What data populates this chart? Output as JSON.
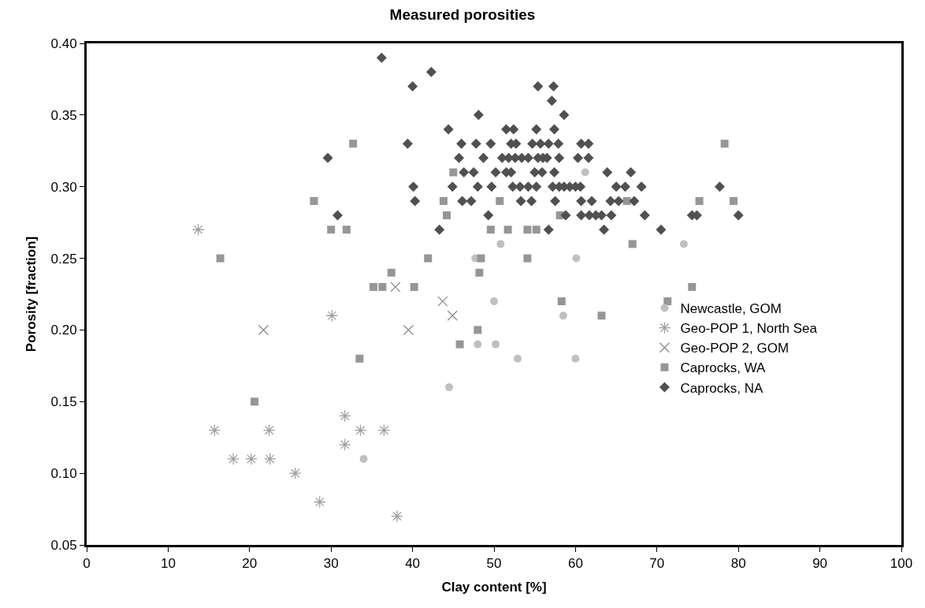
{
  "chart_data": {
    "type": "scatter",
    "title": "Measured porosities",
    "xlabel": "Clay content [%]",
    "ylabel": "Porosity [fraction]",
    "xlim": [
      0,
      100
    ],
    "xticks": [
      0,
      10,
      20,
      30,
      40,
      50,
      60,
      70,
      80,
      90,
      100
    ],
    "ylim": [
      0.05,
      0.4
    ],
    "yticks": [
      {
        "value": 0.05,
        "label": "0.05"
      },
      {
        "value": 0.1,
        "label": "0.10"
      },
      {
        "value": 0.15,
        "label": "0.15"
      },
      {
        "value": 0.2,
        "label": "0.20"
      },
      {
        "value": 0.25,
        "label": "0.25"
      },
      {
        "value": 0.3,
        "label": "0.30"
      },
      {
        "value": 0.35,
        "label": "0.35"
      },
      {
        "value": 0.4,
        "label": "0.40"
      }
    ],
    "legend": "right",
    "series": [
      {
        "name": "Newcastle, GOM",
        "color": "#c0c0c0",
        "marker": "circle",
        "x": [
          61.2,
          73.3,
          50.8,
          47.7,
          60.1,
          50.0,
          58.5,
          48.0,
          50.2,
          52.9,
          60.0,
          44.5,
          34.0
        ],
        "values": [
          0.31,
          0.26,
          0.26,
          0.25,
          0.25,
          0.22,
          0.21,
          0.19,
          0.19,
          0.18,
          0.18,
          0.16,
          0.11
        ]
      },
      {
        "name": "Geo-POP 1, North Sea",
        "color": "#a0a0a0",
        "marker": "cross",
        "x": [
          13.7,
          30.1,
          15.7,
          22.4,
          31.7,
          31.7,
          33.6,
          36.5,
          18.0,
          20.2,
          22.5,
          25.6,
          28.6,
          38.1
        ],
        "values": [
          0.27,
          0.21,
          0.13,
          0.13,
          0.14,
          0.12,
          0.13,
          0.13,
          0.11,
          0.11,
          0.11,
          0.1,
          0.08,
          0.07
        ]
      },
      {
        "name": "Geo-POP 2, GOM",
        "color": "#8c8c8c",
        "marker": "cross",
        "x": [
          21.7,
          37.9,
          43.7,
          44.9,
          39.5
        ],
        "values": [
          0.2,
          0.23,
          0.22,
          0.21,
          0.2
        ]
      },
      {
        "name": "Caprocks, WA",
        "color": "#969696",
        "marker": "square",
        "x": [
          32.7,
          78.3,
          45.0,
          27.9,
          43.8,
          50.7,
          66.3,
          75.2,
          79.4,
          44.2,
          58.1,
          30.0,
          31.9,
          49.6,
          51.7,
          54.1,
          55.2,
          67.0,
          16.4,
          41.9,
          48.4,
          54.1,
          37.4,
          48.2,
          35.2,
          36.3,
          40.2,
          74.3,
          58.3,
          71.3,
          63.2,
          48.0,
          45.8,
          33.5,
          20.6
        ],
        "values": [
          0.33,
          0.33,
          0.31,
          0.29,
          0.29,
          0.29,
          0.29,
          0.29,
          0.29,
          0.28,
          0.28,
          0.27,
          0.27,
          0.27,
          0.27,
          0.27,
          0.27,
          0.26,
          0.25,
          0.25,
          0.25,
          0.25,
          0.24,
          0.24,
          0.23,
          0.23,
          0.23,
          0.23,
          0.22,
          0.22,
          0.21,
          0.2,
          0.19,
          0.18,
          0.15
        ]
      },
      {
        "name": "Caprocks, NA",
        "color": "#505050",
        "marker": "diamond",
        "x": [
          36.2,
          42.3,
          40.0,
          55.4,
          57.3,
          57.1,
          48.1,
          58.6,
          44.4,
          51.5,
          52.4,
          55.2,
          57.4,
          39.4,
          46.0,
          47.8,
          49.6,
          52.1,
          52.7,
          54.7,
          55.7,
          56.7,
          57.9,
          60.7,
          61.6,
          29.6,
          45.7,
          48.7,
          51.0,
          51.8,
          52.6,
          53.4,
          54.2,
          55.4,
          56.0,
          56.5,
          58.0,
          60.3,
          61.6,
          46.3,
          47.5,
          50.2,
          51.5,
          52.1,
          55.0,
          55.9,
          57.4,
          63.9,
          66.8,
          40.1,
          44.9,
          48.0,
          49.7,
          52.3,
          53.2,
          54.2,
          55.2,
          57.2,
          58.0,
          58.6,
          59.3,
          60.0,
          60.6,
          65.0,
          66.1,
          68.1,
          77.7,
          40.3,
          46.1,
          47.2,
          53.3,
          54.6,
          57.5,
          60.7,
          62.0,
          64.3,
          65.3,
          67.2,
          30.8,
          49.3,
          58.8,
          60.7,
          61.7,
          62.5,
          63.2,
          64.4,
          68.5,
          74.3,
          74.9,
          80.0,
          43.3,
          56.7,
          63.5,
          70.5
        ],
        "values": [
          0.39,
          0.38,
          0.37,
          0.37,
          0.37,
          0.36,
          0.35,
          0.35,
          0.34,
          0.34,
          0.34,
          0.34,
          0.34,
          0.33,
          0.33,
          0.33,
          0.33,
          0.33,
          0.33,
          0.33,
          0.33,
          0.33,
          0.33,
          0.33,
          0.33,
          0.32,
          0.32,
          0.32,
          0.32,
          0.32,
          0.32,
          0.32,
          0.32,
          0.32,
          0.32,
          0.32,
          0.32,
          0.32,
          0.32,
          0.31,
          0.31,
          0.31,
          0.31,
          0.31,
          0.31,
          0.31,
          0.31,
          0.31,
          0.31,
          0.3,
          0.3,
          0.3,
          0.3,
          0.3,
          0.3,
          0.3,
          0.3,
          0.3,
          0.3,
          0.3,
          0.3,
          0.3,
          0.3,
          0.3,
          0.3,
          0.3,
          0.3,
          0.29,
          0.29,
          0.29,
          0.29,
          0.29,
          0.29,
          0.29,
          0.29,
          0.29,
          0.29,
          0.29,
          0.28,
          0.28,
          0.28,
          0.28,
          0.28,
          0.28,
          0.28,
          0.28,
          0.28,
          0.28,
          0.28,
          0.28,
          0.27,
          0.27,
          0.27,
          0.27
        ]
      }
    ]
  }
}
